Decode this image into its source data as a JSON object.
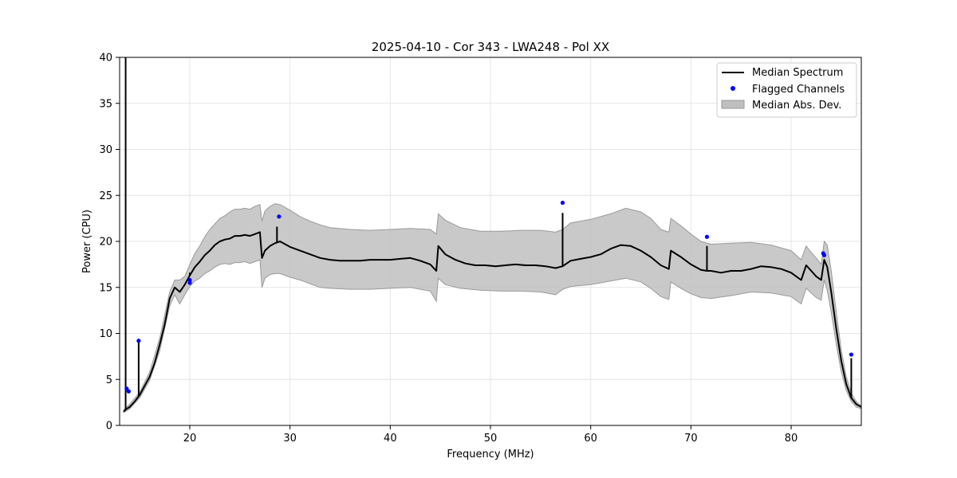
{
  "chart_data": {
    "type": "line",
    "title": "2025-04-10 - Cor 343 - LWA248 - Pol XX",
    "xlabel": "Frequency (MHz)",
    "ylabel": "Power (CPU)",
    "xlim": [
      13,
      87
    ],
    "ylim": [
      0,
      40
    ],
    "xticks": [
      20,
      30,
      40,
      50,
      60,
      70,
      80
    ],
    "yticks": [
      0,
      5,
      10,
      15,
      20,
      25,
      30,
      35,
      40
    ],
    "grid": true,
    "legend_position": "top-right",
    "colors": {
      "median": "#000000",
      "flagged": "#0000ff",
      "mad_fill": "#bfbfbf",
      "mad_edge": "#9a9a9a"
    },
    "series": [
      {
        "name": "Median Spectrum",
        "kind": "line",
        "x": [
          13.4,
          13.7,
          14.0,
          14.5,
          15.0,
          15.5,
          16.0,
          16.5,
          17.0,
          17.5,
          18.0,
          18.5,
          19.0,
          19.5,
          20.0,
          20.5,
          21.0,
          21.5,
          22.0,
          22.5,
          23.0,
          23.5,
          24.0,
          24.5,
          25.0,
          25.5,
          26.0,
          26.5,
          27.0,
          27.2,
          27.5,
          28.0,
          28.5,
          29.0,
          30.0,
          31.0,
          32.0,
          33.0,
          34.0,
          35.0,
          36.0,
          37.0,
          38.0,
          39.0,
          40.0,
          41.0,
          42.0,
          43.0,
          44.0,
          44.6,
          44.8,
          45.5,
          46.5,
          47.5,
          48.5,
          49.5,
          50.5,
          51.5,
          52.5,
          53.5,
          54.5,
          55.5,
          56.5,
          57.2,
          58.0,
          59.0,
          60.0,
          61.0,
          62.0,
          63.0,
          64.0,
          65.0,
          66.0,
          67.0,
          67.8,
          68.0,
          69.0,
          70.0,
          71.0,
          71.6,
          72.0,
          73.0,
          74.0,
          75.0,
          76.0,
          77.0,
          78.0,
          79.0,
          80.0,
          81.0,
          81.5,
          82.0,
          82.5,
          83.0,
          83.3,
          83.6,
          84.0,
          84.5,
          85.0,
          85.5,
          86.0,
          86.5,
          87.0
        ],
        "y": [
          1.5,
          1.8,
          2.0,
          2.6,
          3.3,
          4.3,
          5.3,
          6.8,
          8.8,
          11.0,
          13.8,
          15.0,
          14.5,
          15.3,
          16.3,
          17.2,
          17.8,
          18.5,
          19.0,
          19.6,
          20.0,
          20.2,
          20.3,
          20.6,
          20.6,
          20.7,
          20.6,
          20.8,
          21.0,
          18.2,
          19.0,
          19.5,
          19.8,
          20.0,
          19.4,
          19.0,
          18.6,
          18.2,
          18.0,
          17.9,
          17.9,
          17.9,
          18.0,
          18.0,
          18.0,
          18.1,
          18.2,
          17.9,
          17.5,
          16.8,
          19.5,
          18.6,
          18.0,
          17.6,
          17.4,
          17.4,
          17.3,
          17.4,
          17.5,
          17.4,
          17.4,
          17.3,
          17.1,
          17.3,
          17.9,
          18.1,
          18.3,
          18.6,
          19.2,
          19.6,
          19.5,
          19.0,
          18.3,
          17.4,
          17.0,
          19.0,
          18.3,
          17.5,
          16.9,
          16.8,
          16.8,
          16.6,
          16.8,
          16.8,
          17.0,
          17.3,
          17.2,
          17.0,
          16.6,
          15.8,
          17.4,
          16.8,
          16.2,
          15.8,
          18.0,
          17.2,
          14.5,
          10.5,
          7.0,
          4.5,
          3.0,
          2.3,
          2.0
        ],
        "spikes": [
          [
            13.6,
            40
          ],
          [
            14.9,
            9.2
          ],
          [
            20.0,
            16.6
          ],
          [
            28.7,
            21.6
          ],
          [
            57.2,
            23.1
          ],
          [
            71.6,
            19.5
          ],
          [
            86.0,
            7.3
          ]
        ]
      },
      {
        "name": "Flagged Channels",
        "kind": "scatter",
        "points": [
          [
            13.7,
            4.0
          ],
          [
            13.9,
            3.7
          ],
          [
            14.9,
            9.2
          ],
          [
            20.0,
            15.5
          ],
          [
            20.0,
            15.8
          ],
          [
            28.9,
            22.7
          ],
          [
            57.2,
            24.2
          ],
          [
            71.6,
            20.5
          ],
          [
            83.2,
            18.7
          ],
          [
            83.3,
            18.5
          ],
          [
            86.0,
            7.7
          ]
        ]
      },
      {
        "name": "Median Abs. Dev.",
        "kind": "band",
        "x": [
          13.4,
          14.0,
          15.0,
          16.0,
          17.0,
          18.0,
          18.5,
          19.0,
          19.5,
          20.0,
          20.5,
          21.0,
          21.5,
          22.0,
          22.5,
          23.0,
          23.5,
          24.0,
          24.5,
          25.0,
          25.5,
          26.0,
          26.5,
          27.0,
          27.2,
          27.5,
          28.0,
          28.5,
          29.0,
          30.0,
          31.0,
          32.0,
          33.0,
          34.0,
          36.0,
          38.0,
          40.0,
          42.0,
          44.0,
          44.6,
          44.8,
          45.5,
          47.0,
          49.0,
          51.0,
          53.0,
          55.0,
          56.5,
          57.2,
          58.0,
          60.0,
          62.0,
          63.5,
          65.0,
          66.0,
          67.0,
          67.8,
          68.0,
          69.0,
          70.0,
          71.0,
          72.0,
          74.0,
          76.0,
          78.0,
          80.0,
          81.0,
          81.5,
          82.0,
          82.5,
          83.0,
          83.3,
          83.6,
          84.0,
          84.5,
          85.0,
          85.5,
          86.0,
          86.5,
          87.0
        ],
        "upper": [
          1.7,
          2.3,
          3.6,
          5.8,
          9.5,
          14.5,
          15.8,
          15.8,
          16.2,
          17.5,
          18.7,
          19.5,
          20.5,
          21.3,
          21.9,
          22.5,
          22.8,
          23.2,
          23.5,
          23.5,
          23.6,
          23.5,
          23.8,
          24.0,
          22.2,
          23.3,
          23.8,
          24.1,
          24.0,
          23.4,
          22.7,
          22.2,
          21.8,
          21.5,
          21.3,
          21.2,
          21.3,
          21.4,
          21.3,
          20.8,
          23.0,
          22.3,
          21.5,
          21.1,
          21.1,
          21.2,
          21.2,
          21.0,
          21.3,
          22.0,
          22.4,
          23.0,
          23.6,
          23.2,
          22.5,
          21.3,
          21.0,
          22.5,
          21.7,
          20.8,
          20.0,
          19.7,
          19.8,
          19.9,
          19.6,
          19.0,
          18.0,
          19.5,
          18.8,
          18.2,
          17.5,
          20.0,
          19.6,
          16.8,
          12.3,
          8.2,
          5.3,
          3.5,
          2.6,
          2.1
        ],
        "lower": [
          1.4,
          1.8,
          3.0,
          4.9,
          8.1,
          13.0,
          14.2,
          13.2,
          14.2,
          15.1,
          15.7,
          16.0,
          16.5,
          16.8,
          17.2,
          17.5,
          17.6,
          17.5,
          17.7,
          17.7,
          17.8,
          17.6,
          17.8,
          18.0,
          15.0,
          16.0,
          16.4,
          16.5,
          16.5,
          16.1,
          15.8,
          15.4,
          15.0,
          14.9,
          14.8,
          14.8,
          14.9,
          15.0,
          14.6,
          13.5,
          16.0,
          15.3,
          14.9,
          14.7,
          14.6,
          14.6,
          14.5,
          14.2,
          14.8,
          15.1,
          15.3,
          15.7,
          16.0,
          15.6,
          14.9,
          14.0,
          13.7,
          15.6,
          14.9,
          14.3,
          13.9,
          13.8,
          14.1,
          14.5,
          14.4,
          14.0,
          13.2,
          14.9,
          14.4,
          13.9,
          13.6,
          15.8,
          14.7,
          12.3,
          8.8,
          5.8,
          3.8,
          2.6,
          2.0,
          1.8
        ]
      }
    ]
  }
}
